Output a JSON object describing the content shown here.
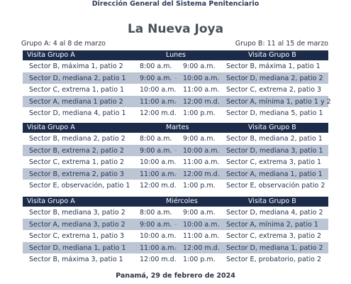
{
  "header": {
    "organization": "Dirección General del Sistema Penitenciario",
    "title": "La Nueva Joya",
    "group_a_dates": "Grupo A: 4 al 8 de marzo",
    "group_b_dates": "Grupo B: 11 al 15 de marzo"
  },
  "days": [
    {
      "group_a_label": "Visita Grupo A",
      "day": "Lunes",
      "group_b_label": "Visita Grupo B",
      "rows": [
        {
          "a": "Sector B, máxima 1, patio 2",
          "start": "8:00 a.m.",
          "end": "9:00 a.m.",
          "b": "Sector B, máxima 1, patio 1"
        },
        {
          "a": "Sector D, mediana 2, patio 1",
          "start": "9:00 a.m.",
          "end": "10:00 a.m.",
          "b": "Sector D, mediana 2, patio 2"
        },
        {
          "a": "Sector C, extrema 1, patio 1",
          "start": "10:00 a.m.",
          "end": "11:00 a.m.",
          "b": "Sector C, extrema 2, patio 3"
        },
        {
          "a": "Sector A, mediana 1 patio 2",
          "start": "11:00 a.m.",
          "end": "12:00 m.d.",
          "b": "Sector A, mínima 1, patio 1 y 2"
        },
        {
          "a": "Sector D, mediana 4, patio 1",
          "start": "12:00 m.d.",
          "end": "1:00 p.m.",
          "b": "Sector D, mediana 5, patio 1"
        }
      ]
    },
    {
      "group_a_label": "Visita Grupo A",
      "day": "Martes",
      "group_b_label": "Visita Grupo B",
      "rows": [
        {
          "a": "Sector B, mediana 2, patio 2",
          "start": "8:00 a.m.",
          "end": "9:00 a.m.",
          "b": "Sector B, mediana 2, patio 1"
        },
        {
          "a": "Sector B, extrema 2, patio 2",
          "start": "9:00 a.m.",
          "end": "10:00 a.m.",
          "b": "Sector D, mediana 3, patio 1"
        },
        {
          "a": "Sector C, extrema 1, patio 2",
          "start": "10:00 a.m.",
          "end": "11:00 a.m.",
          "b": "Sector C, extrema 3, patio 1"
        },
        {
          "a": "Sector B, extrema 2, patio 3",
          "start": "11:00 a.m.",
          "end": "12:00 m.d.",
          "b": "Sector A, mediana 1, patio 1"
        },
        {
          "a": "Sector E, observación, patio 1",
          "start": "12:00 m.d.",
          "end": "1:00 p.m.",
          "b": "Sector E, observación patio 2"
        }
      ]
    },
    {
      "group_a_label": "Visita Grupo A",
      "day": "Miércoles",
      "group_b_label": "Visita Grupo B",
      "rows": [
        {
          "a": "Sector B, mediana 3, patio 2",
          "start": "8:00 a.m.",
          "end": "9:00 a.m.",
          "b": "Sector D, mediana 4, patio 2"
        },
        {
          "a": "Sector A, mediana 3, patio 2",
          "start": "9:00 a.m.",
          "end": "10:00 a.m.",
          "b": "Sector A, mínima 2, patio 1"
        },
        {
          "a": "Sector C, extrema 1, patio 3",
          "start": "10:00 a.m.",
          "end": "11:00 a.m.",
          "b": "Sector C, extrema 3, patio 2"
        },
        {
          "a": "Sector D, mediana 1, patio 1",
          "start": "11:00 a.m.",
          "end": "12:00 m.d.",
          "b": "Sector D, mediana 1, patio 2"
        },
        {
          "a": "Sector B, máxima 3, patio 1",
          "start": "12:00 m.d.",
          "end": "1:00 p.m.",
          "b": "Sector E, probatorio, patio 2"
        }
      ]
    }
  ],
  "separator": "-",
  "footer": "Panamá, 29 de febrero de 2024"
}
